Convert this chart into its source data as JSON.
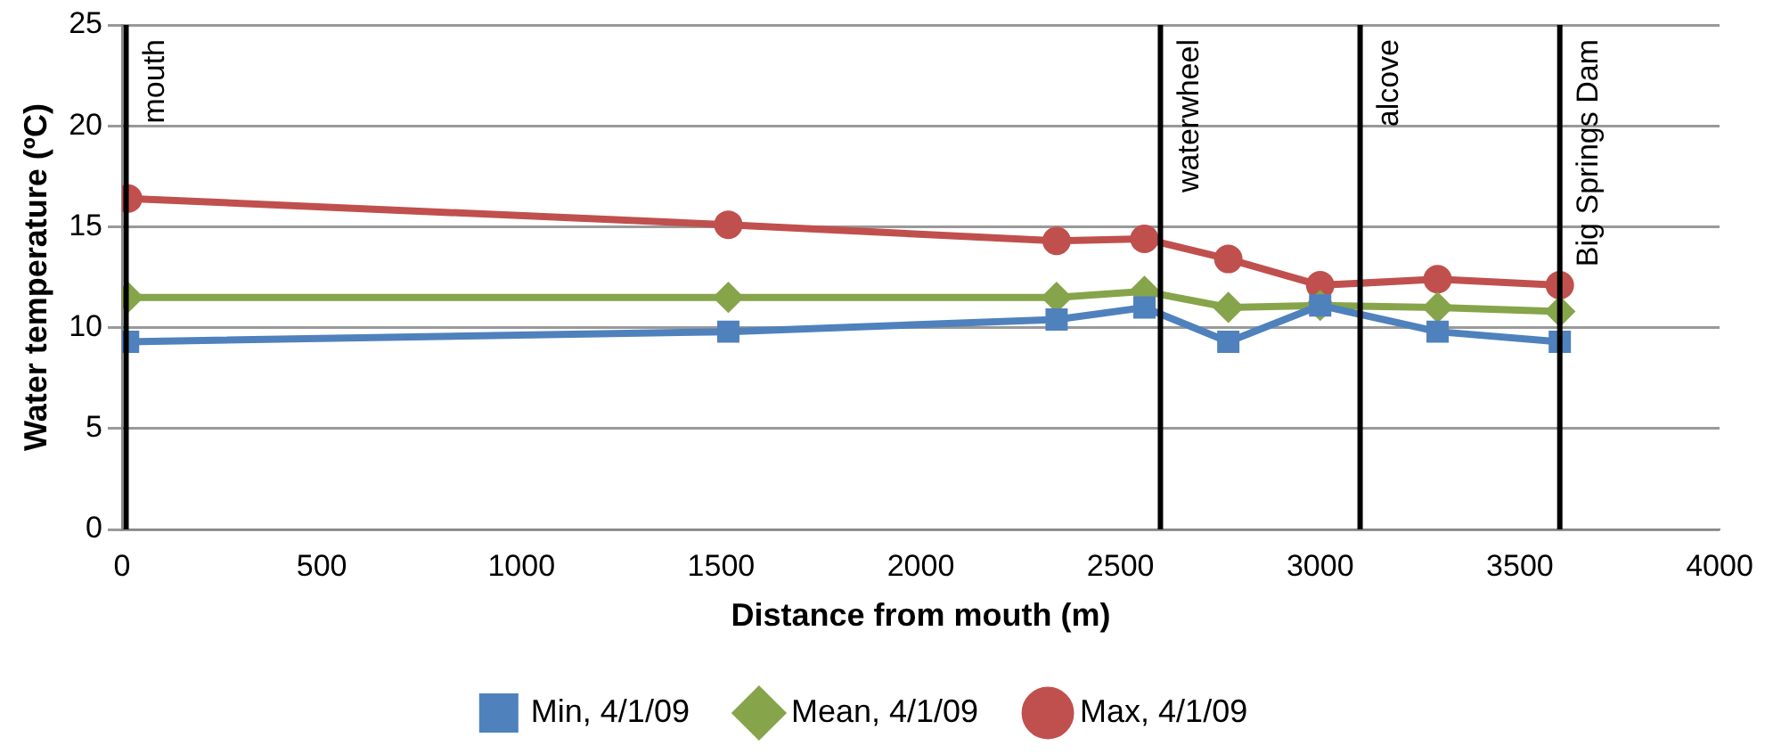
{
  "chart_data": {
    "type": "line",
    "xlabel": "Distance from mouth (m)",
    "ylabel": "Water temperature (ºC)",
    "x": [
      15,
      1518,
      2340,
      2560,
      2770,
      3000,
      3294,
      3600
    ],
    "series": [
      {
        "name": "Max, 4/1/09",
        "color": "#c0504d",
        "marker": "circle",
        "values": [
          16.4,
          15.1,
          14.3,
          14.4,
          13.4,
          12.1,
          12.4,
          12.1
        ]
      },
      {
        "name": "Mean, 4/1/09",
        "color": "#86a44a",
        "marker": "diamond",
        "values": [
          11.5,
          11.5,
          11.5,
          11.8,
          11.0,
          11.1,
          11.0,
          10.8
        ]
      },
      {
        "name": "Min, 4/1/09",
        "color": "#4f81bd",
        "marker": "square",
        "values": [
          9.3,
          9.8,
          10.4,
          11.0,
          9.3,
          11.1,
          9.8,
          9.3
        ]
      }
    ],
    "xlim": [
      0,
      4000
    ],
    "xticks": [
      0,
      500,
      1000,
      1500,
      2000,
      2500,
      3000,
      3500,
      4000
    ],
    "ylim": [
      0,
      25
    ],
    "yticks": [
      0,
      5,
      10,
      15,
      20,
      25
    ],
    "grid": "y",
    "legend": "bottom",
    "line_style": "solid",
    "ref_lines": [
      {
        "axis": "x",
        "value": 10,
        "label": "mouth",
        "color": "#000000"
      },
      {
        "axis": "x",
        "value": 2600,
        "label": "waterwheel",
        "color": "#000000"
      },
      {
        "axis": "x",
        "value": 3100,
        "label": "alcove",
        "color": "#000000"
      },
      {
        "axis": "x",
        "value": 3600,
        "label": "Big Springs Dam",
        "color": "#000000"
      }
    ]
  }
}
